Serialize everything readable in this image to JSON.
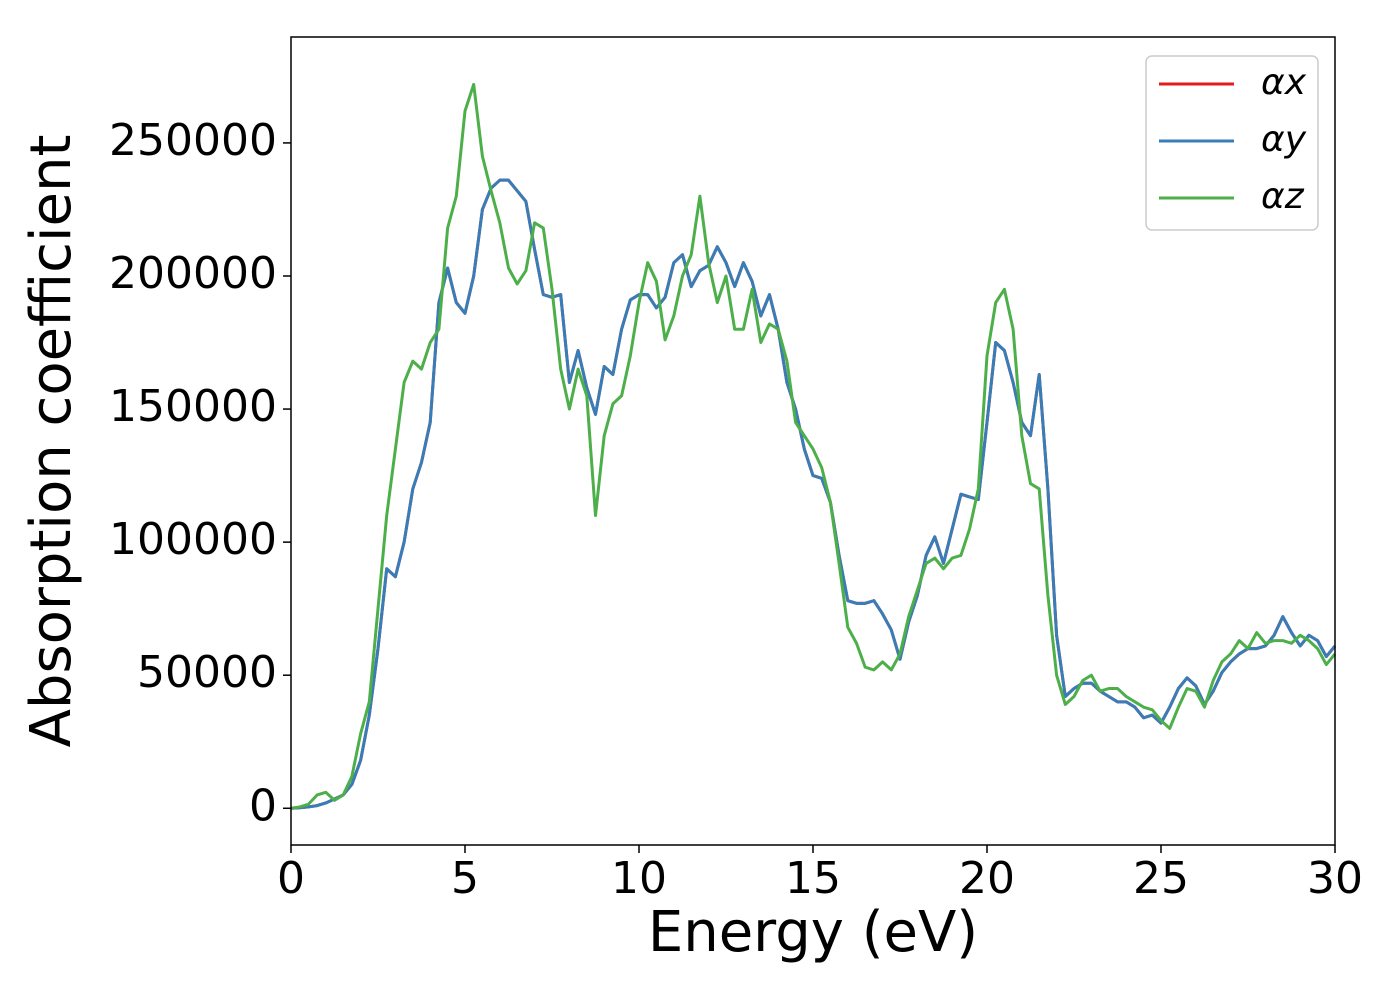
{
  "chart_data": {
    "type": "line",
    "xlabel": "Energy (eV)",
    "ylabel": "Absorption coefficient",
    "x": [
      0,
      0.25,
      0.5,
      0.75,
      1,
      1.25,
      1.5,
      1.75,
      2,
      2.25,
      2.5,
      2.75,
      3,
      3.25,
      3.5,
      3.75,
      4,
      4.25,
      4.5,
      4.75,
      5,
      5.25,
      5.5,
      5.75,
      6,
      6.25,
      6.5,
      6.75,
      7,
      7.25,
      7.5,
      7.75,
      8,
      8.25,
      8.5,
      8.75,
      9,
      9.25,
      9.5,
      9.75,
      10,
      10.25,
      10.5,
      10.75,
      11,
      11.25,
      11.5,
      11.75,
      12,
      12.25,
      12.5,
      12.75,
      13,
      13.25,
      13.5,
      13.75,
      14,
      14.25,
      14.5,
      14.75,
      15,
      15.25,
      15.5,
      15.75,
      16,
      16.25,
      16.5,
      16.75,
      17,
      17.25,
      17.5,
      17.75,
      18,
      18.25,
      18.5,
      18.75,
      19,
      19.25,
      19.5,
      19.75,
      20,
      20.25,
      20.5,
      20.75,
      21,
      21.25,
      21.5,
      21.75,
      22,
      22.25,
      22.5,
      22.75,
      23,
      23.25,
      23.5,
      23.75,
      24,
      24.25,
      24.5,
      24.75,
      25,
      25.25,
      25.5,
      25.75,
      26,
      26.25,
      26.5,
      26.75,
      27,
      27.25,
      27.5,
      27.75,
      28,
      28.25,
      28.5,
      28.75,
      29,
      29.25,
      29.5,
      29.75,
      30
    ],
    "series": [
      {
        "name": "αx",
        "color": "#e41a1c",
        "values": [
          0,
          200,
          500,
          1000,
          2000,
          3500,
          5000,
          9000,
          18000,
          35000,
          60000,
          90000,
          87000,
          100000,
          120000,
          130000,
          145000,
          190000,
          203000,
          190000,
          186000,
          200000,
          225000,
          233000,
          236000,
          236000,
          232000,
          228000,
          210000,
          193000,
          192000,
          193000,
          160000,
          172000,
          158000,
          148000,
          166000,
          163000,
          180000,
          191000,
          193000,
          193000,
          188000,
          192000,
          205000,
          208000,
          196000,
          202000,
          204000,
          211000,
          205000,
          196000,
          205000,
          198000,
          185000,
          193000,
          180000,
          160000,
          150000,
          135000,
          125000,
          124000,
          115000,
          95000,
          78000,
          77000,
          77000,
          78000,
          73000,
          67000,
          56000,
          70000,
          80000,
          95000,
          102000,
          92000,
          105000,
          118000,
          117000,
          116000,
          145000,
          175000,
          172000,
          160000,
          145000,
          140000,
          163000,
          120000,
          65000,
          42000,
          45000,
          47000,
          47000,
          44000,
          42000,
          40000,
          40000,
          38000,
          34000,
          35000,
          32000,
          38000,
          45000,
          49000,
          46000,
          39000,
          44000,
          51000,
          55000,
          58000,
          60000,
          60000,
          61000,
          65000,
          72000,
          66000,
          61000,
          65000,
          63000,
          57000,
          61000
        ]
      },
      {
        "name": "αy",
        "color": "#377eb8",
        "values": [
          0,
          200,
          500,
          1000,
          2000,
          3500,
          5000,
          9000,
          18000,
          35000,
          60000,
          90000,
          87000,
          100000,
          120000,
          130000,
          145000,
          190000,
          203000,
          190000,
          186000,
          200000,
          225000,
          233000,
          236000,
          236000,
          232000,
          228000,
          210000,
          193000,
          192000,
          193000,
          160000,
          172000,
          158000,
          148000,
          166000,
          163000,
          180000,
          191000,
          193000,
          193000,
          188000,
          192000,
          205000,
          208000,
          196000,
          202000,
          204000,
          211000,
          205000,
          196000,
          205000,
          198000,
          185000,
          193000,
          180000,
          160000,
          150000,
          135000,
          125000,
          124000,
          115000,
          95000,
          78000,
          77000,
          77000,
          78000,
          73000,
          67000,
          56000,
          70000,
          80000,
          95000,
          102000,
          92000,
          105000,
          118000,
          117000,
          116000,
          145000,
          175000,
          172000,
          160000,
          145000,
          140000,
          163000,
          120000,
          65000,
          42000,
          45000,
          47000,
          47000,
          44000,
          42000,
          40000,
          40000,
          38000,
          34000,
          35000,
          32000,
          38000,
          45000,
          49000,
          46000,
          39000,
          44000,
          51000,
          55000,
          58000,
          60000,
          60000,
          61000,
          65000,
          72000,
          66000,
          61000,
          65000,
          63000,
          57000,
          61000
        ]
      },
      {
        "name": "αz",
        "color": "#4daf4a",
        "values": [
          0,
          500,
          1500,
          5000,
          6000,
          3000,
          5000,
          12000,
          28000,
          40000,
          75000,
          110000,
          135000,
          160000,
          168000,
          165000,
          175000,
          180000,
          218000,
          230000,
          262000,
          272000,
          245000,
          232000,
          220000,
          203000,
          197000,
          202000,
          220000,
          218000,
          195000,
          165000,
          150000,
          165000,
          155000,
          110000,
          140000,
          152000,
          155000,
          170000,
          190000,
          205000,
          198000,
          176000,
          185000,
          200000,
          208000,
          230000,
          205000,
          190000,
          200000,
          180000,
          180000,
          195000,
          175000,
          182000,
          180000,
          168000,
          145000,
          140000,
          135000,
          128000,
          115000,
          92000,
          68000,
          62000,
          53000,
          52000,
          55000,
          52000,
          58000,
          72000,
          82000,
          92000,
          94000,
          90000,
          94000,
          95000,
          105000,
          120000,
          170000,
          190000,
          195000,
          180000,
          140000,
          122000,
          120000,
          80000,
          50000,
          39000,
          42000,
          48000,
          50000,
          44000,
          45000,
          45000,
          42000,
          40000,
          38000,
          37000,
          33000,
          30000,
          38000,
          45000,
          44000,
          38000,
          48000,
          55000,
          58000,
          63000,
          60000,
          66000,
          62000,
          63000,
          63000,
          62000,
          65000,
          63000,
          60000,
          54000,
          58000
        ]
      }
    ],
    "xlim": [
      0,
      30
    ],
    "xticks": [
      0,
      5,
      10,
      15,
      20,
      25,
      30
    ],
    "ylim": [
      -13800,
      289800
    ],
    "yticks": [
      0,
      50000,
      100000,
      150000,
      200000,
      250000
    ],
    "legend": "upper right"
  }
}
